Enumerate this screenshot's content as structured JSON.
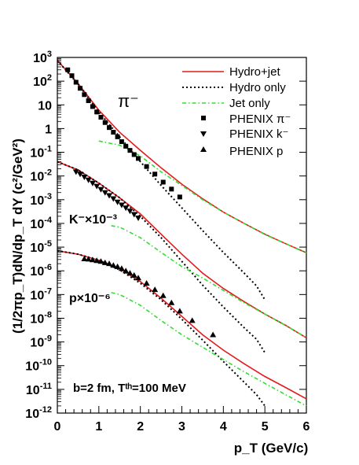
{
  "chart_data": {
    "type": "line",
    "xlabel": "p_T (GeV/c)",
    "ylabel": "(1/2πp_T)dN/dp_T dY (c²/GeV²)",
    "xlim": [
      0,
      6
    ],
    "ylim": [
      1e-12,
      1000
    ],
    "yscale": "log",
    "x_ticks": [
      "0",
      "1",
      "2",
      "3",
      "4",
      "5",
      "6"
    ],
    "y_ticks": [
      {
        "m": "10",
        "e": "3"
      },
      {
        "m": "10",
        "e": "2"
      },
      {
        "m": "10",
        "e": ""
      },
      {
        "m": "1",
        "e": ""
      },
      {
        "m": "10",
        "e": "-1"
      },
      {
        "m": "10",
        "e": "-2"
      },
      {
        "m": "10",
        "e": "-3"
      },
      {
        "m": "10",
        "e": "-4"
      },
      {
        "m": "10",
        "e": "-5"
      },
      {
        "m": "10",
        "e": "-6"
      },
      {
        "m": "10",
        "e": "-7"
      },
      {
        "m": "10",
        "e": "-8"
      },
      {
        "m": "10",
        "e": "-9"
      },
      {
        "m": "10",
        "e": "-10"
      },
      {
        "m": "10",
        "e": "-11"
      },
      {
        "m": "10",
        "e": "-12"
      }
    ],
    "annotations": {
      "pion": "π⁻",
      "kaon": "K⁻×10⁻³",
      "proton": "p×10⁻⁶",
      "conditions": "b=2 fm, Tᵗʰ=100 MeV"
    },
    "legend": [
      "Hydro+jet",
      "Hydro only",
      "Jet only",
      "PHENIX π⁻",
      "PHENIX k⁻",
      "PHENIX p"
    ],
    "colors": {
      "hydro_jet": "#e41a1c",
      "hydro_only": "#000000",
      "jet_only": "#33dd33",
      "phenix": "#000000"
    },
    "curves": [
      {
        "species": "pion",
        "series": "Hydro+jet",
        "x": [
          0,
          0.5,
          1,
          1.5,
          2,
          2.5,
          3,
          3.5,
          4,
          4.5,
          5,
          5.5,
          6
        ],
        "y": [
          750,
          80,
          6,
          0.7,
          0.12,
          0.022,
          0.0045,
          0.0011,
          0.0003,
          0.0001,
          3.5e-05,
          1.4e-05,
          5.8e-06
        ]
      },
      {
        "species": "pion",
        "series": "Hydro only",
        "x": [
          0,
          0.5,
          1,
          1.5,
          2,
          2.5,
          3,
          3.5,
          4,
          4.5,
          4.8,
          5
        ],
        "y": [
          750,
          75,
          5,
          0.45,
          0.04,
          0.004,
          0.00045,
          5e-05,
          6e-06,
          8e-07,
          2.3e-07,
          6e-08
        ]
      },
      {
        "species": "pion",
        "series": "Jet only",
        "x": [
          1,
          1.5,
          2,
          2.5,
          3,
          3.5,
          4,
          4.5,
          5,
          5.5,
          6
        ],
        "y": [
          0.3,
          0.2,
          0.07,
          0.015,
          0.004,
          0.001,
          0.0003,
          0.0001,
          3.4e-05,
          1.4e-05,
          5.6e-06
        ]
      },
      {
        "species": "kaon",
        "series": "Hydro+jet",
        "x": [
          0,
          0.5,
          1,
          1.5,
          2,
          2.5,
          3,
          3.5,
          4,
          4.5,
          5,
          5.5,
          6
        ],
        "y": [
          0.04,
          0.018,
          0.005,
          0.0012,
          0.00025,
          3.5e-05,
          5e-06,
          8e-07,
          1.8e-07,
          5e-08,
          1.5e-08,
          5e-09,
          1.5e-09
        ]
      },
      {
        "species": "kaon",
        "series": "Hydro only",
        "x": [
          0,
          0.5,
          1,
          1.5,
          2,
          2.5,
          3,
          3.5,
          4,
          4.5,
          4.8,
          5
        ],
        "y": [
          0.04,
          0.018,
          0.005,
          0.0012,
          0.0002,
          2.5e-05,
          2.5e-06,
          2.5e-07,
          3e-08,
          4e-09,
          1.3e-09,
          3.5e-10
        ]
      },
      {
        "species": "kaon",
        "series": "Jet only",
        "x": [
          1.3,
          1.5,
          2,
          2.5,
          3,
          3.5,
          4,
          4.5,
          5,
          5.5,
          6
        ],
        "y": [
          8e-05,
          7e-05,
          2.5e-05,
          6e-06,
          1.5e-06,
          5e-07,
          1.5e-07,
          4.5e-08,
          1.5e-08,
          5e-09,
          1.5e-09
        ]
      },
      {
        "species": "proton",
        "series": "Hydro+jet",
        "x": [
          0,
          0.5,
          1,
          1.5,
          2,
          2.5,
          3,
          3.5,
          4,
          4.5,
          5,
          5.5,
          6
        ],
        "y": [
          7e-06,
          5e-06,
          2.8e-06,
          1.2e-06,
          3.5e-07,
          7e-08,
          1.2e-08,
          2e-09,
          4.5e-10,
          1.2e-10,
          3.5e-11,
          1.2e-11,
          4e-12
        ]
      },
      {
        "species": "proton",
        "series": "Hydro only",
        "x": [
          0,
          0.5,
          1,
          1.5,
          2,
          2.5,
          3,
          3.5,
          4,
          4.5,
          4.8,
          5
        ],
        "y": [
          7e-06,
          5e-06,
          2.8e-06,
          1.1e-06,
          3e-07,
          6e-08,
          9e-09,
          1.2e-09,
          1.5e-10,
          2e-11,
          6e-12,
          2e-12
        ]
      },
      {
        "species": "proton",
        "series": "Jet only",
        "x": [
          1.3,
          1.5,
          2,
          2.5,
          3,
          3.5,
          4,
          4.5,
          5,
          5.5,
          6
        ],
        "y": [
          1.2e-07,
          1e-07,
          3.5e-08,
          8e-09,
          2e-09,
          6e-10,
          1.8e-10,
          5.5e-11,
          1.8e-11,
          6e-12,
          2e-12
        ]
      }
    ],
    "points": [
      {
        "species": "pion",
        "series": "PHENIX π⁻",
        "marker": "square",
        "x": [
          0.25,
          0.35,
          0.45,
          0.55,
          0.65,
          0.75,
          0.85,
          0.95,
          1.05,
          1.15,
          1.25,
          1.35,
          1.45,
          1.55,
          1.65,
          1.75,
          1.85,
          1.95,
          2.15,
          2.35,
          2.55,
          2.75,
          2.95
        ],
        "y": [
          300,
          170,
          90,
          50,
          27,
          15,
          8.5,
          5,
          3,
          1.8,
          1.1,
          0.7,
          0.45,
          0.28,
          0.18,
          0.12,
          0.08,
          0.055,
          0.025,
          0.012,
          0.0055,
          0.0028,
          0.0013
        ]
      },
      {
        "species": "kaon",
        "series": "PHENIX k⁻",
        "marker": "triangle-down",
        "x": [
          0.45,
          0.55,
          0.65,
          0.75,
          0.85,
          0.95,
          1.05,
          1.15,
          1.25,
          1.35,
          1.45,
          1.55,
          1.65,
          1.75,
          1.85,
          1.95
        ],
        "y": [
          0.015,
          0.012,
          0.009,
          0.0068,
          0.005,
          0.0037,
          0.0027,
          0.002,
          0.0015,
          0.0011,
          0.0008,
          0.0006,
          0.00045,
          0.00033,
          0.00024,
          0.00017
        ]
      },
      {
        "species": "proton",
        "series": "PHENIX p",
        "marker": "triangle-up",
        "x": [
          0.65,
          0.75,
          0.85,
          0.95,
          1.05,
          1.15,
          1.25,
          1.35,
          1.45,
          1.55,
          1.65,
          1.75,
          1.85,
          1.95,
          2.15,
          2.35,
          2.55,
          2.75,
          2.95,
          3.25,
          3.75
        ],
        "y": [
          3.2e-06,
          3.1e-06,
          2.9e-06,
          2.7e-06,
          2.5e-06,
          2.2e-06,
          2e-06,
          1.7e-06,
          1.5e-06,
          1.25e-06,
          1e-06,
          8e-07,
          6.5e-07,
          5e-07,
          3e-07,
          1.6e-07,
          9e-08,
          4.5e-08,
          2e-08,
          8e-09,
          2e-09
        ]
      }
    ]
  }
}
